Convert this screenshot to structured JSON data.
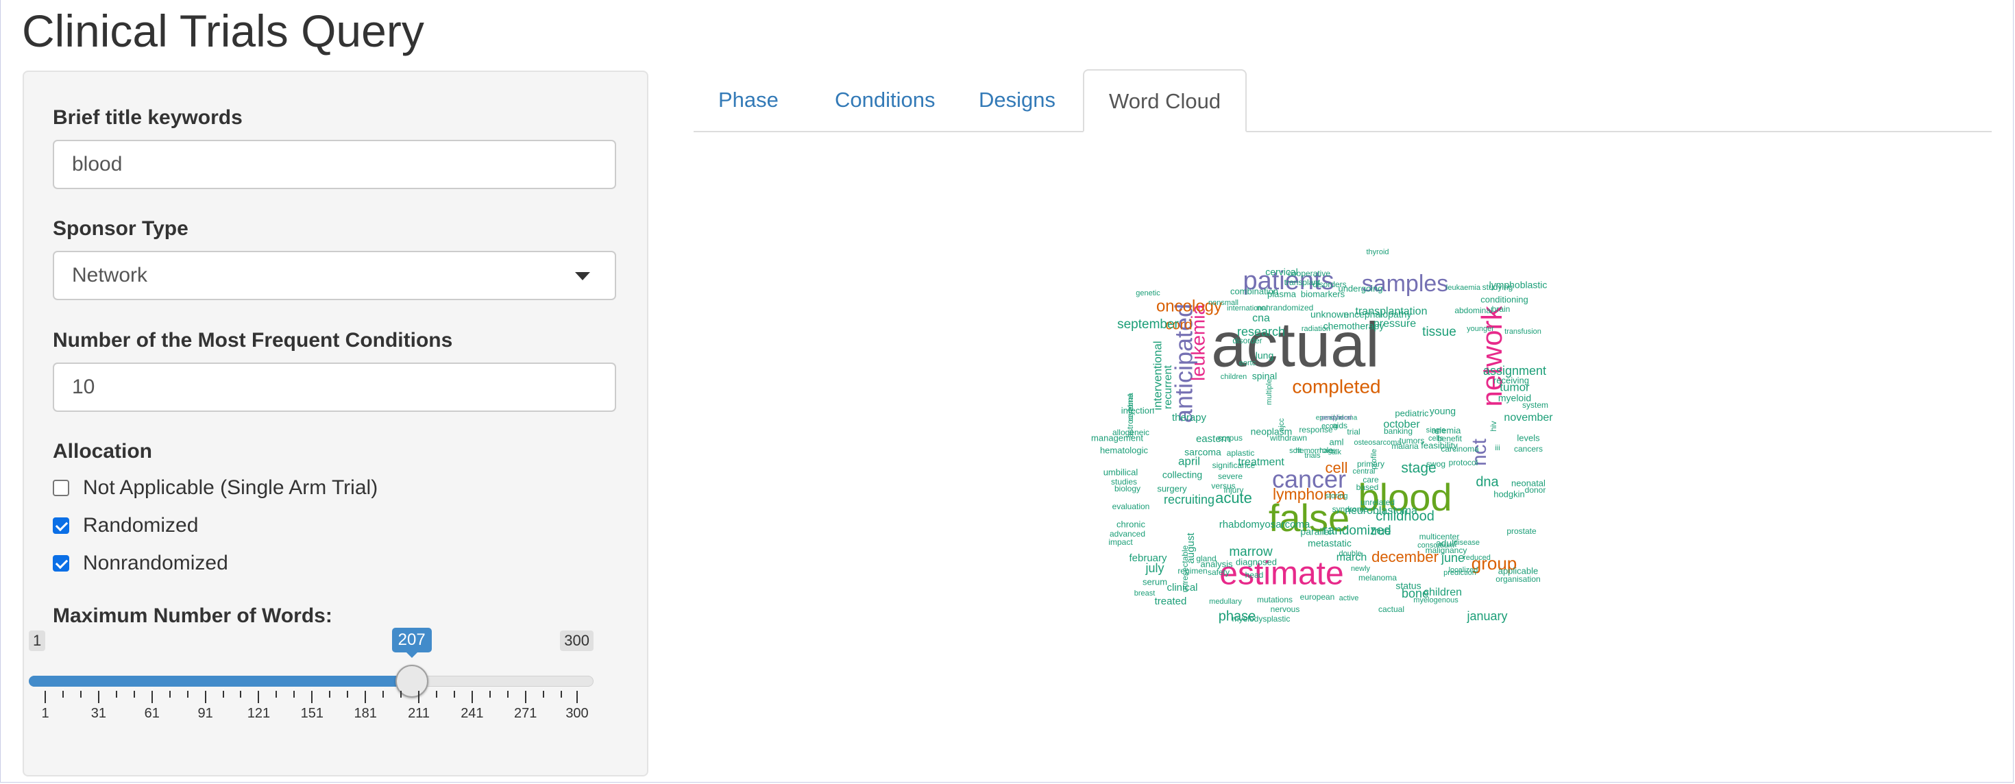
{
  "app": {
    "title": "Clinical Trials Query"
  },
  "sidebar": {
    "keywords": {
      "label": "Brief title keywords",
      "value": "blood"
    },
    "sponsor": {
      "label": "Sponsor Type",
      "value": "Network"
    },
    "conditions": {
      "label": "Number of the Most Frequent Conditions",
      "value": "10"
    },
    "allocation": {
      "label": "Allocation",
      "options": [
        {
          "label": "Not Applicable (Single Arm Trial)",
          "checked": false
        },
        {
          "label": "Randomized",
          "checked": true
        },
        {
          "label": "Nonrandomized",
          "checked": true
        }
      ]
    },
    "max_words": {
      "label": "Maximum Number of Words:",
      "min": 1,
      "max": 300,
      "value": 207,
      "min_label": "1",
      "max_label": "300",
      "value_label": "207",
      "ticks": [
        "1",
        "31",
        "61",
        "91",
        "121",
        "151",
        "181",
        "211",
        "241",
        "271",
        "300"
      ]
    }
  },
  "tabs": [
    {
      "label": "Phase",
      "active": false
    },
    {
      "label": "Conditions",
      "active": false
    },
    {
      "label": "Designs",
      "active": false
    },
    {
      "label": "Word Cloud",
      "active": true
    }
  ],
  "colors": {
    "accent": "#428bca",
    "link": "#337ab7",
    "checkbox": "#0b6fe6"
  },
  "wordcloud": [
    {
      "text": "actual",
      "color": "#555555"
    },
    {
      "text": "blood",
      "color": "#66a61e"
    },
    {
      "text": "false",
      "color": "#66a61e"
    },
    {
      "text": "estimate",
      "color": "#e7298a"
    },
    {
      "text": "network",
      "color": "#e7298a"
    },
    {
      "text": "cancer",
      "color": "#7570b3"
    },
    {
      "text": "patients",
      "color": "#7570b3"
    },
    {
      "text": "samples",
      "color": "#7570b3"
    },
    {
      "text": "anticipated",
      "color": "#7570b3"
    },
    {
      "text": "completed",
      "color": "#d95f02"
    },
    {
      "text": "leukemia",
      "color": "#e7298a"
    },
    {
      "text": "nct",
      "color": "#7570b3"
    },
    {
      "text": "oncology",
      "color": "#d95f02"
    },
    {
      "text": "lymphoma",
      "color": "#d95f02"
    },
    {
      "text": "group",
      "color": "#d95f02"
    },
    {
      "text": "cord",
      "color": "#d95f02"
    },
    {
      "text": "cell",
      "color": "#d95f02"
    },
    {
      "text": "december",
      "color": "#d95f02"
    },
    {
      "text": "acute",
      "color": "#1b9e77"
    },
    {
      "text": "stage",
      "color": "#1b9e77"
    },
    {
      "text": "dna",
      "color": "#1b9e77"
    },
    {
      "text": "phase",
      "color": "#1b9e77"
    },
    {
      "text": "childhood",
      "color": "#1b9e77"
    },
    {
      "text": "randomized",
      "color": "#1b9e77"
    },
    {
      "text": "september",
      "color": "#1b9e77"
    },
    {
      "text": "research",
      "color": "#1b9e77"
    },
    {
      "text": "tissue",
      "color": "#1b9e77"
    },
    {
      "text": "marrow",
      "color": "#1b9e77"
    },
    {
      "text": "interventional",
      "color": "#1b9e77"
    },
    {
      "text": "recruiting",
      "color": "#1b9e77"
    },
    {
      "text": "july",
      "color": "#1b9e77"
    },
    {
      "text": "january",
      "color": "#1b9e77"
    },
    {
      "text": "june",
      "color": "#1b9e77"
    },
    {
      "text": "bone",
      "color": "#1b9e77"
    },
    {
      "text": "assignment",
      "color": "#1b9e77"
    },
    {
      "text": "tumor",
      "color": "#1b9e77"
    },
    {
      "text": "november",
      "color": "#1b9e77"
    },
    {
      "text": "october",
      "color": "#1b9e77"
    },
    {
      "text": "transplantation",
      "color": "#1b9e77"
    },
    {
      "text": "pressure",
      "color": "#1b9e77"
    },
    {
      "text": "april",
      "color": "#1b9e77"
    },
    {
      "text": "eastern",
      "color": "#1b9e77"
    },
    {
      "text": "treatment",
      "color": "#1b9e77"
    },
    {
      "text": "neuroblastoma",
      "color": "#1b9e77"
    },
    {
      "text": "march",
      "color": "#1b9e77"
    },
    {
      "text": "true",
      "color": "#1b9e77"
    },
    {
      "text": "children",
      "color": "#1b9e77"
    },
    {
      "text": "recurrent",
      "color": "#1b9e77"
    },
    {
      "text": "august",
      "color": "#1b9e77"
    },
    {
      "text": "therapy",
      "color": "#1b9e77"
    },
    {
      "text": "sarcoma",
      "color": "#1b9e77"
    },
    {
      "text": "cna",
      "color": "#1b9e77"
    },
    {
      "text": "lung",
      "color": "#1b9e77"
    },
    {
      "text": "spinal",
      "color": "#1b9e77"
    },
    {
      "text": "february",
      "color": "#1b9e77"
    },
    {
      "text": "clinical",
      "color": "#1b9e77"
    },
    {
      "text": "treated",
      "color": "#1b9e77"
    },
    {
      "text": "metastatic",
      "color": "#1b9e77"
    },
    {
      "text": "parallel",
      "color": "#1b9e77"
    },
    {
      "text": "unknown",
      "color": "#1b9e77"
    },
    {
      "text": "chemotherapy",
      "color": "#1b9e77"
    },
    {
      "text": "encephalopathy",
      "color": "#1b9e77"
    },
    {
      "text": "lymphoblastic",
      "color": "#1b9e77"
    },
    {
      "text": "myeloid",
      "color": "#1b9e77"
    },
    {
      "text": "conditioning",
      "color": "#1b9e77"
    },
    {
      "text": "studying",
      "color": "#1b9e77"
    },
    {
      "text": "receiving",
      "color": "#1b9e77"
    },
    {
      "text": "neonatal",
      "color": "#1b9e77"
    },
    {
      "text": "hodgkin",
      "color": "#1b9e77"
    },
    {
      "text": "adult",
      "color": "#1b9e77"
    },
    {
      "text": "status",
      "color": "#1b9e77"
    },
    {
      "text": "applicable",
      "color": "#1b9e77"
    },
    {
      "text": "organisation",
      "color": "#1b9e77"
    },
    {
      "text": "analysis",
      "color": "#1b9e77"
    },
    {
      "text": "serum",
      "color": "#1b9e77"
    },
    {
      "text": "diagnosed",
      "color": "#1b9e77"
    },
    {
      "text": "regimen",
      "color": "#1b9e77"
    },
    {
      "text": "collecting",
      "color": "#1b9e77"
    },
    {
      "text": "surgery",
      "color": "#1b9e77"
    },
    {
      "text": "rhabdomyosarcoma",
      "color": "#1b9e77"
    },
    {
      "text": "neoplasm",
      "color": "#1b9e77"
    },
    {
      "text": "response",
      "color": "#1b9e77"
    },
    {
      "text": "tumors",
      "color": "#1b9e77"
    },
    {
      "text": "feasibility",
      "color": "#1b9e77"
    },
    {
      "text": "anemia",
      "color": "#1b9e77"
    },
    {
      "text": "benefit",
      "color": "#1b9e77"
    },
    {
      "text": "young",
      "color": "#1b9e77"
    },
    {
      "text": "pediatric",
      "color": "#1b9e77"
    },
    {
      "text": "levels",
      "color": "#1b9e77"
    },
    {
      "text": "cancers",
      "color": "#1b9e77"
    },
    {
      "text": "donor",
      "color": "#1b9e77"
    },
    {
      "text": "prostate",
      "color": "#1b9e77"
    },
    {
      "text": "system",
      "color": "#1b9e77"
    },
    {
      "text": "brain",
      "color": "#1b9e77"
    },
    {
      "text": "abdominal",
      "color": "#1b9e77"
    },
    {
      "text": "transfusion",
      "color": "#1b9e77"
    },
    {
      "text": "cervical",
      "color": "#1b9e77"
    },
    {
      "text": "combination",
      "color": "#1b9e77"
    },
    {
      "text": "plasma",
      "color": "#1b9e77"
    },
    {
      "text": "biomarkers",
      "color": "#1b9e77"
    },
    {
      "text": "undergoing",
      "color": "#1b9e77"
    },
    {
      "text": "disorders",
      "color": "#1b9e77"
    },
    {
      "text": "international",
      "color": "#1b9e77"
    },
    {
      "text": "nonrandomized",
      "color": "#1b9e77"
    },
    {
      "text": "radiation",
      "color": "#1b9e77"
    },
    {
      "text": "infection",
      "color": "#1b9e77"
    },
    {
      "text": "management",
      "color": "#1b9e77"
    },
    {
      "text": "hematologic",
      "color": "#1b9e77"
    },
    {
      "text": "umbilical",
      "color": "#1b9e77"
    },
    {
      "text": "studies",
      "color": "#1b9e77"
    },
    {
      "text": "evaluation",
      "color": "#1b9e77"
    },
    {
      "text": "chronic",
      "color": "#1b9e77"
    },
    {
      "text": "advanced",
      "color": "#1b9e77"
    },
    {
      "text": "impact",
      "color": "#1b9e77"
    },
    {
      "text": "biology",
      "color": "#1b9e77"
    },
    {
      "text": "allogeneic",
      "color": "#1b9e77"
    },
    {
      "text": "astrocytoma",
      "color": "#1b9e77"
    },
    {
      "text": "genetic",
      "color": "#1b9e77"
    },
    {
      "text": "nonsmall",
      "color": "#1b9e77"
    },
    {
      "text": "disorder",
      "color": "#1b9e77"
    },
    {
      "text": "eortc",
      "color": "#1b9e77"
    },
    {
      "text": "children",
      "color": "#1b9e77"
    },
    {
      "text": "corpus",
      "color": "#1b9e77"
    },
    {
      "text": "aplastic",
      "color": "#1b9e77"
    },
    {
      "text": "significance",
      "color": "#1b9e77"
    },
    {
      "text": "severe",
      "color": "#1b9e77"
    },
    {
      "text": "versus",
      "color": "#1b9e77"
    },
    {
      "text": "injury",
      "color": "#1b9e77"
    },
    {
      "text": "gland",
      "color": "#1b9e77"
    },
    {
      "text": "safety",
      "color": "#1b9e77"
    },
    {
      "text": "head",
      "color": "#1b9e77"
    },
    {
      "text": "breast",
      "color": "#1b9e77"
    },
    {
      "text": "medullary",
      "color": "#1b9e77"
    },
    {
      "text": "mutations",
      "color": "#1b9e77"
    },
    {
      "text": "nervous",
      "color": "#1b9e77"
    },
    {
      "text": "european",
      "color": "#1b9e77"
    },
    {
      "text": "active",
      "color": "#1b9e77"
    },
    {
      "text": "cactual",
      "color": "#1b9e77"
    },
    {
      "text": "myelogenous",
      "color": "#1b9e77"
    },
    {
      "text": "myelodysplastic",
      "color": "#1b9e77"
    },
    {
      "text": "melanoma",
      "color": "#1b9e77"
    },
    {
      "text": "prediction",
      "color": "#1b9e77"
    },
    {
      "text": "localized",
      "color": "#1b9e77"
    },
    {
      "text": "reduced",
      "color": "#1b9e77"
    },
    {
      "text": "malignancy",
      "color": "#1b9e77"
    },
    {
      "text": "consortium",
      "color": "#1b9e77"
    },
    {
      "text": "multicenter",
      "color": "#1b9e77"
    },
    {
      "text": "disease",
      "color": "#1b9e77"
    },
    {
      "text": "double",
      "color": "#1b9e77"
    },
    {
      "text": "newly",
      "color": "#1b9e77"
    },
    {
      "text": "unrelated",
      "color": "#1b9e77"
    },
    {
      "text": "syndrome",
      "color": "#1b9e77"
    },
    {
      "text": "storing",
      "color": "#1b9e77"
    },
    {
      "text": "based",
      "color": "#1b9e77"
    },
    {
      "text": "care",
      "color": "#1b9e77"
    },
    {
      "text": "central",
      "color": "#1b9e77"
    },
    {
      "text": "primary",
      "color": "#1b9e77"
    },
    {
      "text": "profile",
      "color": "#1b9e77"
    },
    {
      "text": "swog",
      "color": "#1b9e77"
    },
    {
      "text": "protocol",
      "color": "#1b9e77"
    },
    {
      "text": "carcinoma",
      "color": "#1b9e77"
    },
    {
      "text": "cells",
      "color": "#1b9e77"
    },
    {
      "text": "single",
      "color": "#1b9e77"
    },
    {
      "text": "banking",
      "color": "#1b9e77"
    },
    {
      "text": "malaria",
      "color": "#1b9e77"
    },
    {
      "text": "osteosarcoma",
      "color": "#1b9e77"
    },
    {
      "text": "trial",
      "color": "#1b9e77"
    },
    {
      "text": "aids",
      "color": "#1b9e77"
    },
    {
      "text": "ecog",
      "color": "#1b9e77"
    },
    {
      "text": "aml",
      "color": "#1b9e77"
    },
    {
      "text": "alk",
      "color": "#1b9e77"
    },
    {
      "text": "role",
      "color": "#1b9e77"
    },
    {
      "text": "hemorrhage",
      "color": "#1b9e77"
    },
    {
      "text": "withdrawn",
      "color": "#1b9e77"
    },
    {
      "text": "soft",
      "color": "#1b9e77"
    },
    {
      "text": "trials",
      "color": "#1b9e77"
    },
    {
      "text": "iii",
      "color": "#1b9e77"
    },
    {
      "text": "hiv",
      "color": "#1b9e77"
    },
    {
      "text": "ajcc",
      "color": "#1b9e77"
    },
    {
      "text": "multiple",
      "color": "#1b9e77"
    },
    {
      "text": "cooperative",
      "color": "#1b9e77"
    },
    {
      "text": "transplant",
      "color": "#1b9e77"
    },
    {
      "text": "leukaemia",
      "color": "#1b9e77"
    },
    {
      "text": "cerebral",
      "color": "#1b9e77"
    },
    {
      "text": "unresectable",
      "color": "#1b9e77"
    },
    {
      "text": "younger",
      "color": "#1b9e77"
    },
    {
      "text": "thyroid",
      "color": "#1b9e77"
    },
    {
      "text": "solid",
      "color": "#1b9e77"
    },
    {
      "text": "ependymoma",
      "color": "#1b9e77"
    },
    {
      "text": "peripheral",
      "color": "#7570b3"
    }
  ]
}
